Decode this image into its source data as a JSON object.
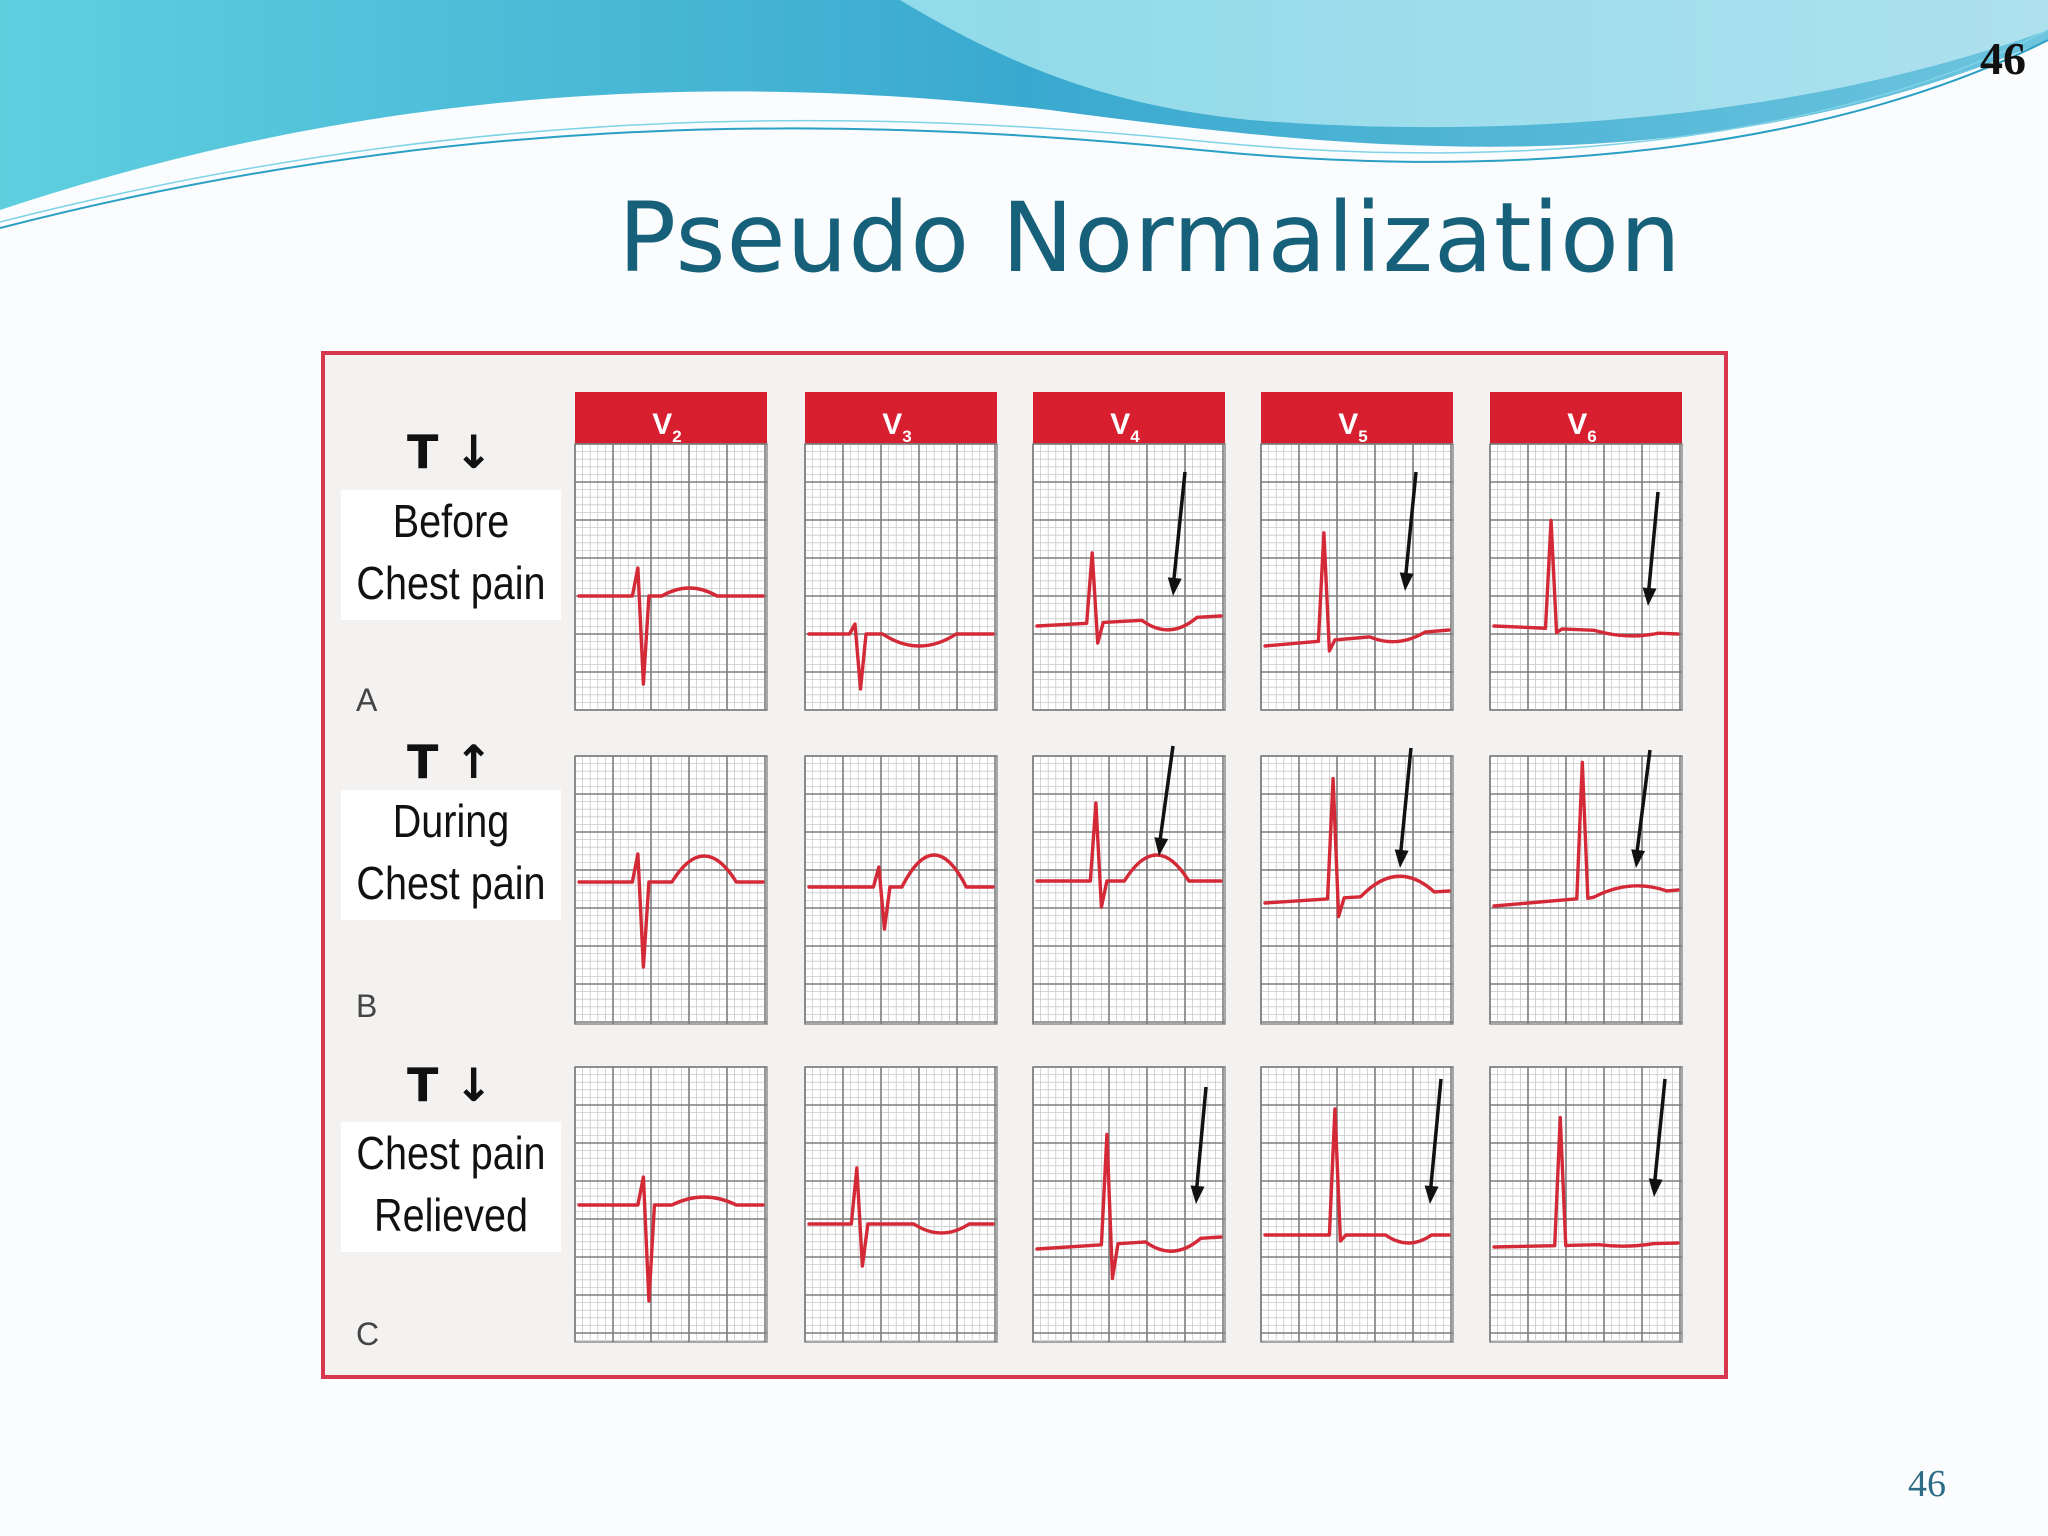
{
  "slide": {
    "title": "Pseudo Normalization",
    "page_number_top": "46",
    "page_number_bottom": "46"
  },
  "colors": {
    "title": "#17607a",
    "ecg_trace": "#d42a38",
    "lead_header": "#d71f2f",
    "frame_border": "#d8384e",
    "arrow": "#111111"
  },
  "leads": [
    {
      "label": "V",
      "sub": "2"
    },
    {
      "label": "V",
      "sub": "3"
    },
    {
      "label": "V",
      "sub": "4"
    },
    {
      "label": "V",
      "sub": "5"
    },
    {
      "label": "V",
      "sub": "6"
    }
  ],
  "rows": [
    {
      "letter": "A",
      "t_indicator": "T ↓",
      "label_line1": "Before",
      "label_line2": "Chest pain",
      "t_wave": "inverted",
      "arrows_on_leads": [
        "V4",
        "V5",
        "V6"
      ]
    },
    {
      "letter": "B",
      "t_indicator": "T ↑",
      "label_line1": "During",
      "label_line2": "Chest pain",
      "t_wave": "upright",
      "arrows_on_leads": [
        "V4",
        "V5",
        "V6"
      ]
    },
    {
      "letter": "C",
      "t_indicator": "T ↓",
      "label_line1": "Chest pain",
      "label_line2": "Relieved",
      "t_wave": "inverted",
      "arrows_on_leads": [
        "V4",
        "V5",
        "V6"
      ]
    }
  ]
}
